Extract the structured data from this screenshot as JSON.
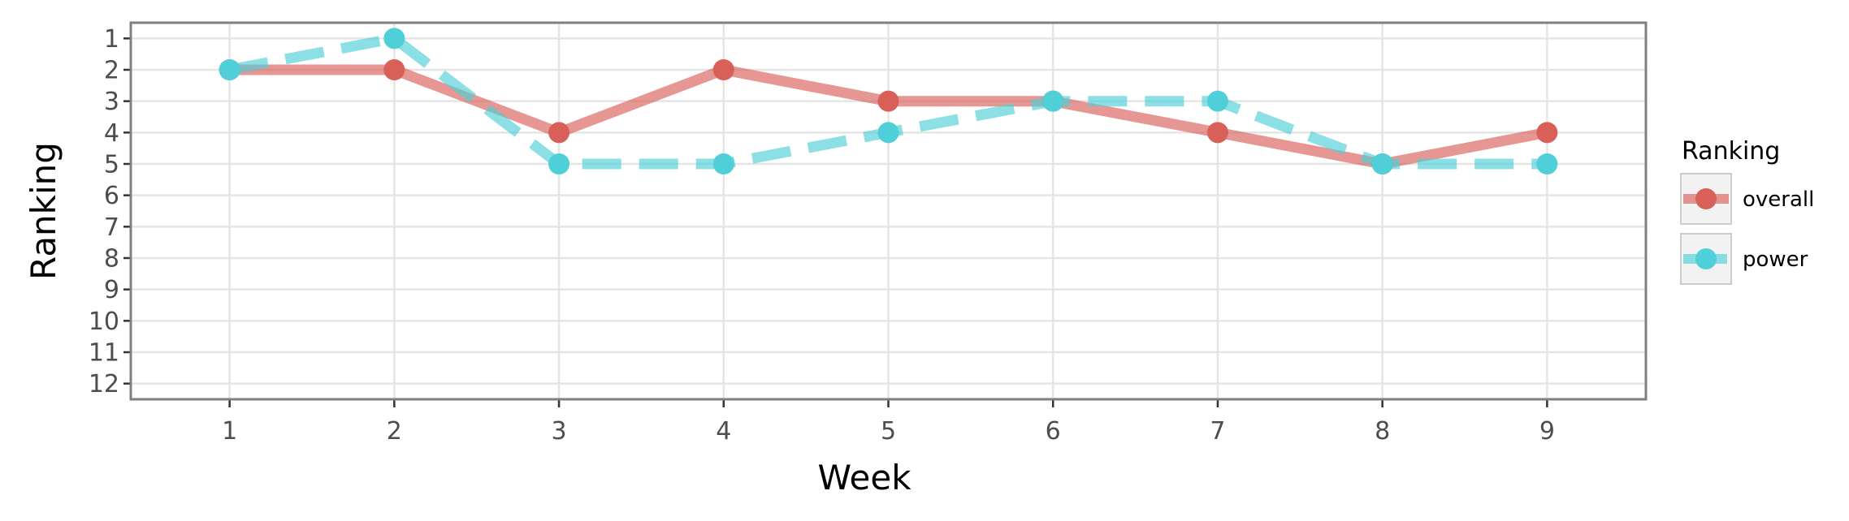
{
  "chart_data": {
    "type": "line",
    "xlabel": "Week",
    "ylabel": "Ranking",
    "x": [
      1,
      2,
      3,
      4,
      5,
      6,
      7,
      8,
      9
    ],
    "xlim": [
      0.4,
      9.6
    ],
    "ylim": [
      12.5,
      0.5
    ],
    "y_reversed": true,
    "x_ticks": [
      1,
      2,
      3,
      4,
      5,
      6,
      7,
      8,
      9
    ],
    "y_ticks": [
      1,
      2,
      3,
      4,
      5,
      6,
      7,
      8,
      9,
      10,
      11,
      12
    ],
    "grid": true,
    "legend": {
      "title": "Ranking",
      "placement": "right"
    },
    "series": [
      {
        "name": "overall",
        "values": [
          2,
          2,
          4,
          2,
          3,
          3,
          4,
          5,
          4
        ],
        "color": "#D95F59",
        "line_style": "solid"
      },
      {
        "name": "power",
        "values": [
          2,
          1,
          5,
          5,
          4,
          3,
          3,
          5,
          5
        ],
        "color": "#4FCFD7",
        "line_style": "dashed"
      }
    ]
  }
}
